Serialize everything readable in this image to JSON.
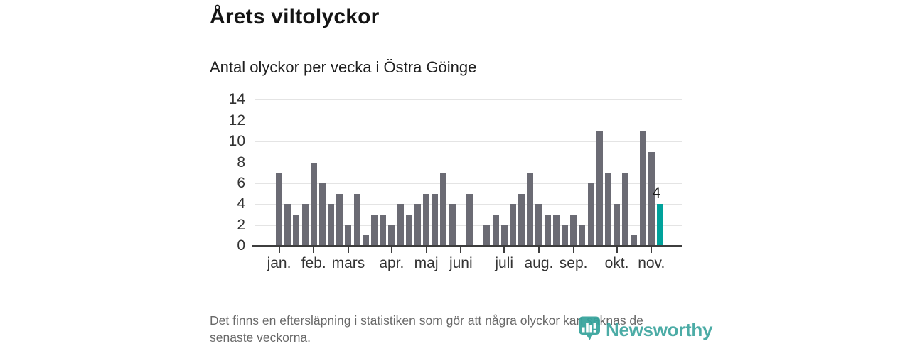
{
  "page": {
    "title": "Årets viltolyckor",
    "subtitle": "Antal olyckor per vecka i Östra Göinge",
    "footer_lines": [
      "Det finns en eftersläpning i statistiken som gör att några olyckor kan saknas de",
      "senaste veckorna."
    ],
    "brand": {
      "name": "Newsworthy",
      "color": "#2d9d96"
    }
  },
  "chart_data": {
    "type": "bar",
    "title": "Årets viltolyckor",
    "subtitle": "Antal olyckor per vecka i Östra Göinge",
    "xlabel": "",
    "ylabel": "",
    "values": [
      7,
      4,
      3,
      4,
      8,
      6,
      4,
      5,
      2,
      5,
      1,
      3,
      3,
      2,
      4,
      3,
      4,
      5,
      5,
      7,
      4,
      0,
      5,
      0,
      2,
      3,
      2,
      4,
      5,
      7,
      4,
      3,
      3,
      2,
      3,
      2,
      6,
      11,
      7,
      4,
      7,
      1,
      11,
      9,
      4
    ],
    "bar_color": "#6b6b74",
    "highlight": {
      "index": 45,
      "value": 4,
      "label": "4",
      "color": "#00a29b"
    },
    "y_ticks": [
      0,
      2,
      4,
      6,
      8,
      10,
      12,
      14
    ],
    "ylim": [
      0,
      14
    ],
    "grid": "horizontal",
    "grid_color": "#e4e4e4",
    "axis_color": "#3d3d3d",
    "legend": "none",
    "month_ticks": [
      {
        "label": "jan.",
        "week": 1
      },
      {
        "label": "feb.",
        "week": 5
      },
      {
        "label": "mars",
        "week": 9
      },
      {
        "label": "apr.",
        "week": 14
      },
      {
        "label": "maj",
        "week": 18
      },
      {
        "label": "juni",
        "week": 22
      },
      {
        "label": "juli",
        "week": 27
      },
      {
        "label": "aug.",
        "week": 31
      },
      {
        "label": "sep.",
        "week": 35
      },
      {
        "label": "okt.",
        "week": 40
      },
      {
        "label": "nov.",
        "week": 44
      }
    ]
  }
}
